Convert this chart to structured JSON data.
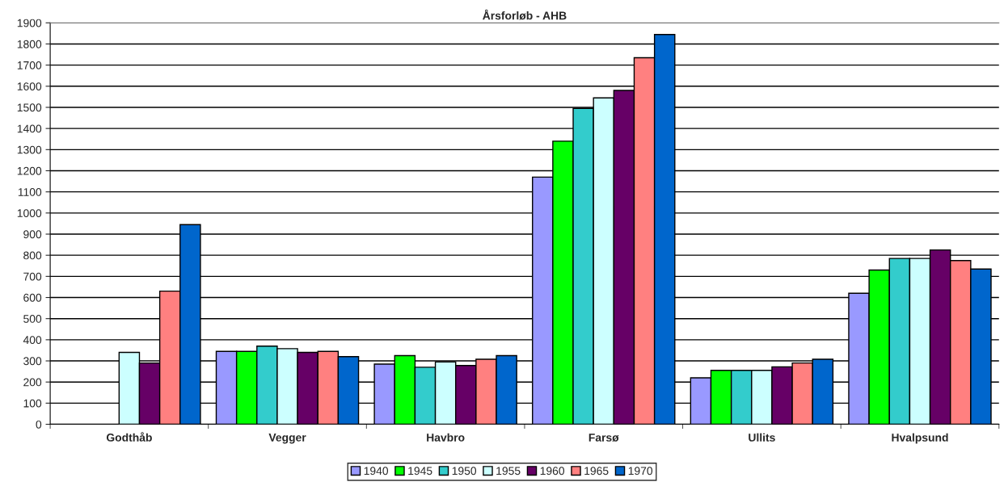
{
  "chart_data": {
    "type": "bar",
    "title": "Årsforløb - AHB",
    "categories": [
      "Godthåb",
      "Vegger",
      "Havbro",
      "Farsø",
      "Ullits",
      "Hvalpsund"
    ],
    "series": [
      {
        "name": "1940",
        "color": "#9999ff",
        "values": [
          null,
          345,
          285,
          1170,
          220,
          620
        ]
      },
      {
        "name": "1945",
        "color": "#00ff00",
        "values": [
          null,
          345,
          325,
          1340,
          255,
          730
        ]
      },
      {
        "name": "1950",
        "color": "#33cccc",
        "values": [
          null,
          370,
          270,
          1495,
          255,
          785
        ]
      },
      {
        "name": "1955",
        "color": "#ccffff",
        "values": [
          340,
          358,
          295,
          1545,
          255,
          785
        ]
      },
      {
        "name": "1960",
        "color": "#660066",
        "values": [
          290,
          340,
          278,
          1580,
          272,
          825
        ]
      },
      {
        "name": "1965",
        "color": "#ff8080",
        "values": [
          630,
          345,
          308,
          1735,
          290,
          775
        ]
      },
      {
        "name": "1970",
        "color": "#0066cc",
        "values": [
          945,
          320,
          325,
          1845,
          308,
          735
        ]
      }
    ],
    "ylim": [
      0,
      1900
    ],
    "yticks": [
      0,
      100,
      200,
      300,
      400,
      500,
      600,
      700,
      800,
      900,
      1000,
      1100,
      1200,
      1300,
      1400,
      1500,
      1600,
      1700,
      1800,
      1900
    ],
    "grid": "y",
    "legend": "bottom"
  }
}
